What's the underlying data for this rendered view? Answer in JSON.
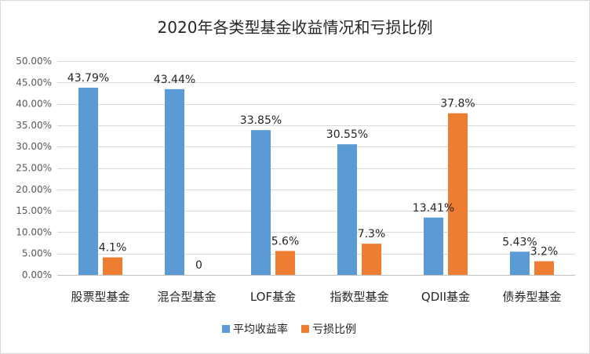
{
  "chart_data": {
    "type": "bar",
    "title": "2020年各类型基金收益情况和亏损比例",
    "categories": [
      "股票型基金",
      "混合型基金",
      "LOF基金",
      "指数型基金",
      "QDII基金",
      "债券型基金"
    ],
    "series": [
      {
        "name": "平均收益率",
        "color": "#5b9bd5",
        "values": [
          43.79,
          43.44,
          33.85,
          30.55,
          13.41,
          5.43
        ],
        "labels": [
          "43.79%",
          "43.44%",
          "33.85%",
          "30.55%",
          "13.41%",
          "5.43%"
        ]
      },
      {
        "name": "亏损比例",
        "color": "#ed7d31",
        "values": [
          4.1,
          0,
          5.6,
          7.3,
          37.8,
          3.2
        ],
        "labels": [
          "4.1%",
          "0",
          "5.6%",
          "7.3%",
          "37.8%",
          "3.2%"
        ]
      }
    ],
    "ylim": [
      0,
      50
    ],
    "yticks": [
      0,
      5,
      10,
      15,
      20,
      25,
      30,
      35,
      40,
      45,
      50
    ],
    "ytick_labels": [
      "0.00%",
      "5.00%",
      "10.00%",
      "15.00%",
      "20.00%",
      "25.00%",
      "30.00%",
      "35.00%",
      "40.00%",
      "45.00%",
      "50.00%"
    ],
    "grid": true,
    "legend_position": "bottom"
  }
}
